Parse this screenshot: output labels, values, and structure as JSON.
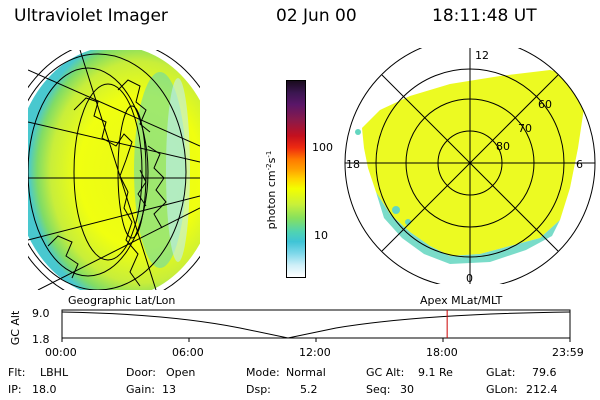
{
  "header": {
    "title": "Ultraviolet Imager",
    "date": "02 Jun 00",
    "time": "18:11:48 UT"
  },
  "colorbar": {
    "label_html": "photon cm<tspan baseline-shift=\"super\" font-size=\"7\">-2</tspan>s<tspan baseline-shift=\"super\" font-size=\"7\">-1</tspan>",
    "label": "photon cm-2s-1",
    "ticks": [
      "100",
      "10"
    ],
    "colors": [
      "#1a0b1e",
      "#3b1650",
      "#5a1668",
      "#8a1a4a",
      "#c4101e",
      "#ee2a10",
      "#ff7a00",
      "#ffa000",
      "#ffd400",
      "#f3ff00",
      "#c8f03a",
      "#86e05e",
      "#4fd3b3",
      "#3fc4d6",
      "#7fd8ea",
      "#cfeff8",
      "#ffffff"
    ]
  },
  "polar_plot": {
    "mlt_labels": [
      "12",
      "18",
      "6",
      "0"
    ],
    "lat_labels": [
      "60",
      "70",
      "80"
    ]
  },
  "map_labels": {
    "left": "Geographic Lat/Lon",
    "right": "Apex MLat/MLT"
  },
  "altitude_plot": {
    "ylabel": "GC Alt",
    "y_ticks": [
      "9.0",
      "1.8"
    ],
    "x_ticks": [
      "00:00",
      "06:00",
      "12:00",
      "18:00",
      "23:59"
    ],
    "marker_time": "18:11",
    "marker_color": "#cc0000"
  },
  "info": {
    "filter_label": "Flt:",
    "filter_value": "LBHL",
    "door_label": "Door:",
    "door_value": "Open",
    "mode_label": "Mode:",
    "mode_value": "Normal",
    "gcalt_label": "GC Alt:",
    "gcalt_value": "9.1 Re",
    "glat_label": "GLat:",
    "glat_value": "79.6",
    "ip_label": "IP:",
    "ip_value": "18.0",
    "gain_label": "Gain:",
    "gain_value": "13",
    "dsp_label": "Dsp:",
    "dsp_value": "5.2",
    "seq_label": "Seq:",
    "seq_value": "30",
    "glon_label": "GLon:",
    "glon_value": "212.4"
  }
}
